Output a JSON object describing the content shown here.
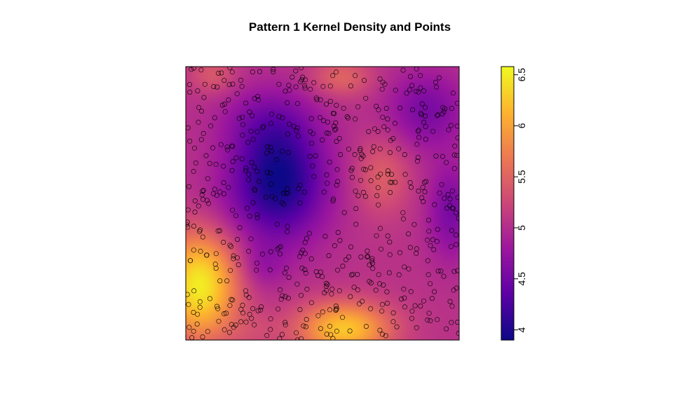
{
  "chart_data": {
    "type": "heatmap",
    "title": "Pattern 1 Kernel Density and Points",
    "xlabel": "",
    "ylabel": "",
    "xlim": [
      0,
      1
    ],
    "ylim": [
      0,
      1
    ],
    "colorbar": {
      "range": [
        3.9,
        6.58
      ],
      "ticks": [
        "4",
        "4.5",
        "5",
        "5.5",
        "6",
        "6.5"
      ],
      "tick_values": [
        4,
        4.5,
        5,
        5.5,
        6,
        6.5
      ],
      "palette": [
        "#0d0887",
        "#5c01a6",
        "#9c179e",
        "#cc4778",
        "#ed7953",
        "#fdb42f",
        "#f0f921"
      ],
      "position": "right"
    },
    "density_field": {
      "base": 5.05,
      "components": [
        {
          "x": 0.34,
          "y": 0.58,
          "sx": 0.12,
          "sy": 0.15,
          "amp": -1.15
        },
        {
          "x": 0.3,
          "y": 0.8,
          "sx": 0.12,
          "sy": 0.09,
          "amp": -0.35
        },
        {
          "x": 0.05,
          "y": 0.2,
          "sx": 0.1,
          "sy": 0.14,
          "amp": 1.45
        },
        {
          "x": 0.58,
          "y": 0.04,
          "sx": 0.12,
          "sy": 0.07,
          "amp": 1.2
        },
        {
          "x": 0.28,
          "y": 0.27,
          "sx": 0.06,
          "sy": 0.06,
          "amp": -0.25
        },
        {
          "x": 0.72,
          "y": 0.6,
          "sx": 0.07,
          "sy": 0.1,
          "amp": 0.4
        },
        {
          "x": 0.57,
          "y": 0.96,
          "sx": 0.08,
          "sy": 0.05,
          "amp": 0.45
        },
        {
          "x": 0.1,
          "y": 0.97,
          "sx": 0.06,
          "sy": 0.05,
          "amp": 0.35
        },
        {
          "x": 0.88,
          "y": 0.84,
          "sx": 0.1,
          "sy": 0.1,
          "amp": -0.5
        },
        {
          "x": 0.97,
          "y": 0.47,
          "sx": 0.06,
          "sy": 0.12,
          "amp": -0.5
        },
        {
          "x": 0.12,
          "y": 0.48,
          "sx": 0.1,
          "sy": 0.1,
          "amp": -0.1
        },
        {
          "x": 0.25,
          "y": 0.03,
          "sx": 0.08,
          "sy": 0.05,
          "amp": 0.15
        }
      ]
    },
    "points": {
      "count": 600,
      "marker": "open-circle",
      "seed": 17,
      "sample": [
        {
          "x": 0.02,
          "y": 0.99
        },
        {
          "x": 0.17,
          "y": 0.98
        },
        {
          "x": 0.32,
          "y": 0.99
        },
        {
          "x": 0.55,
          "y": 0.98
        },
        {
          "x": 0.03,
          "y": 0.18
        },
        {
          "x": 0.53,
          "y": 0.02
        },
        {
          "x": 0.99,
          "y": 0.19
        },
        {
          "x": 0.66,
          "y": 0.05
        },
        {
          "x": 0.01,
          "y": 0.13
        }
      ]
    }
  }
}
